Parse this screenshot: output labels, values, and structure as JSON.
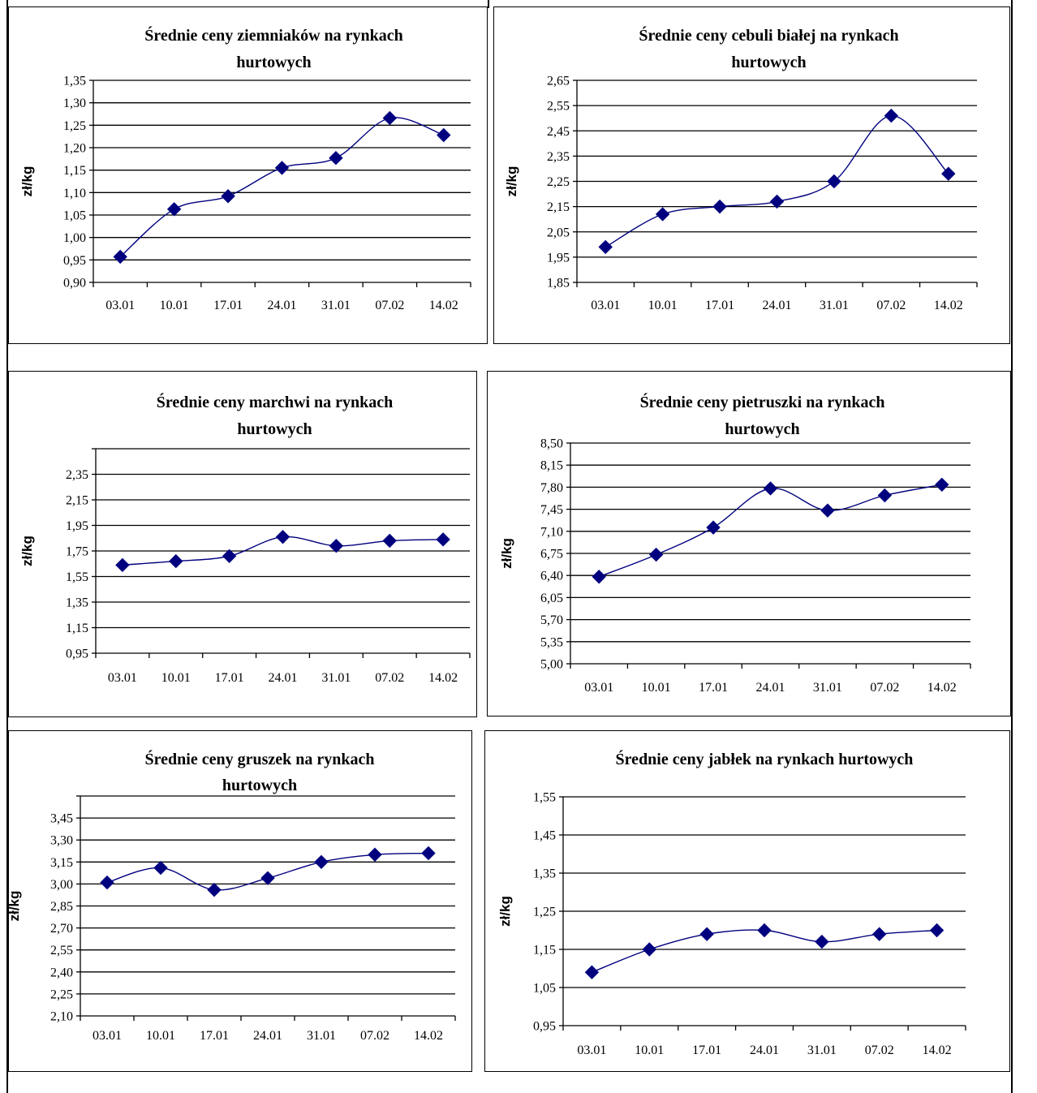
{
  "charts": [
    {
      "type": "line",
      "title": [
        "Średnie ceny ziemniaków  na rynkach",
        "hurtowych"
      ],
      "ylabel": "zł/kg",
      "categories": [
        "03.01",
        "10.01",
        "17.01",
        "24.01",
        "31.01",
        "07.02",
        "14.02"
      ],
      "values": [
        0.957,
        1.063,
        1.092,
        1.155,
        1.177,
        1.266,
        1.228
      ],
      "ylim": [
        0.9,
        1.35
      ],
      "yticks": [
        "0,90",
        "0,95",
        "1,00",
        "1,05",
        "1,10",
        "1,15",
        "1,20",
        "1,25",
        "1,30",
        "1,35"
      ],
      "grid": true,
      "line_color": "#00007f",
      "marker": "diamond"
    },
    {
      "type": "line",
      "title": [
        "Średnie ceny cebuli białej na rynkach",
        "hurtowych"
      ],
      "ylabel": "zł/kg",
      "categories": [
        "03.01",
        "10.01",
        "17.01",
        "24.01",
        "31.01",
        "07.02",
        "14.02"
      ],
      "values": [
        1.99,
        2.12,
        2.15,
        2.17,
        2.25,
        2.51,
        2.28
      ],
      "ylim": [
        1.85,
        2.65
      ],
      "yticks": [
        "1,85",
        "1,95",
        "2,05",
        "2,15",
        "2,25",
        "2,35",
        "2,45",
        "2,55",
        "2,65"
      ],
      "grid": true,
      "line_color": "#00007f",
      "marker": "diamond"
    },
    {
      "type": "line",
      "title": [
        "Średnie ceny marchwi  na rynkach",
        "hurtowych"
      ],
      "ylabel": "zł/kg",
      "categories": [
        "03.01",
        "10.01",
        "17.01",
        "24.01",
        "31.01",
        "07.02",
        "14.02"
      ],
      "values": [
        1.64,
        1.67,
        1.71,
        1.86,
        1.79,
        1.83,
        1.84
      ],
      "ylim": [
        0.95,
        2.55
      ],
      "yticks": [
        "0,95",
        "1,15",
        "1,35",
        "1,55",
        "1,75",
        "1,95",
        "2,15",
        "2,35",
        ""
      ],
      "grid": true,
      "line_color": "#00007f",
      "marker": "diamond"
    },
    {
      "type": "line",
      "title": [
        "Średnie ceny pietruszki na rynkach",
        "hurtowych"
      ],
      "ylabel": "zł/kg",
      "categories": [
        "03.01",
        "10.01",
        "17.01",
        "24.01",
        "31.01",
        "07.02",
        "14.02"
      ],
      "values": [
        6.38,
        6.73,
        7.16,
        7.78,
        7.43,
        7.67,
        7.84
      ],
      "ylim": [
        5.0,
        8.5
      ],
      "yticks": [
        "5,00",
        "5,35",
        "5,70",
        "6,05",
        "6,40",
        "6,75",
        "7,10",
        "7,45",
        "7,80",
        "8,15",
        "8,50"
      ],
      "grid": true,
      "line_color": "#00007f",
      "marker": "diamond"
    },
    {
      "type": "line",
      "title": [
        "Średnie ceny gruszek na rynkach",
        "hurtowych"
      ],
      "ylabel": "zł/kg",
      "categories": [
        "03.01",
        "10.01",
        "17.01",
        "24.01",
        "31.01",
        "07.02",
        "14.02"
      ],
      "values": [
        3.01,
        3.11,
        2.96,
        3.04,
        3.15,
        3.2,
        3.21
      ],
      "ylim": [
        2.1,
        3.6
      ],
      "yticks": [
        "2,10",
        "2,25",
        "2,40",
        "2,55",
        "2,70",
        "2,85",
        "3,00",
        "3,15",
        "3,30",
        "3,45",
        ""
      ],
      "grid": true,
      "line_color": "#00007f",
      "marker": "diamond"
    },
    {
      "type": "line",
      "title": [
        "Średnie ceny jabłek  na rynkach hurtowych"
      ],
      "ylabel": "zł/kg",
      "categories": [
        "03.01",
        "10.01",
        "17.01",
        "24.01",
        "31.01",
        "07.02",
        "14.02"
      ],
      "values": [
        1.09,
        1.15,
        1.19,
        1.2,
        1.17,
        1.19,
        1.2
      ],
      "ylim": [
        0.95,
        1.55
      ],
      "yticks": [
        "0,95",
        "1,05",
        "1,15",
        "1,25",
        "1,35",
        "1,45",
        "1,55"
      ],
      "grid": true,
      "line_color": "#00007f",
      "marker": "diamond"
    }
  ]
}
